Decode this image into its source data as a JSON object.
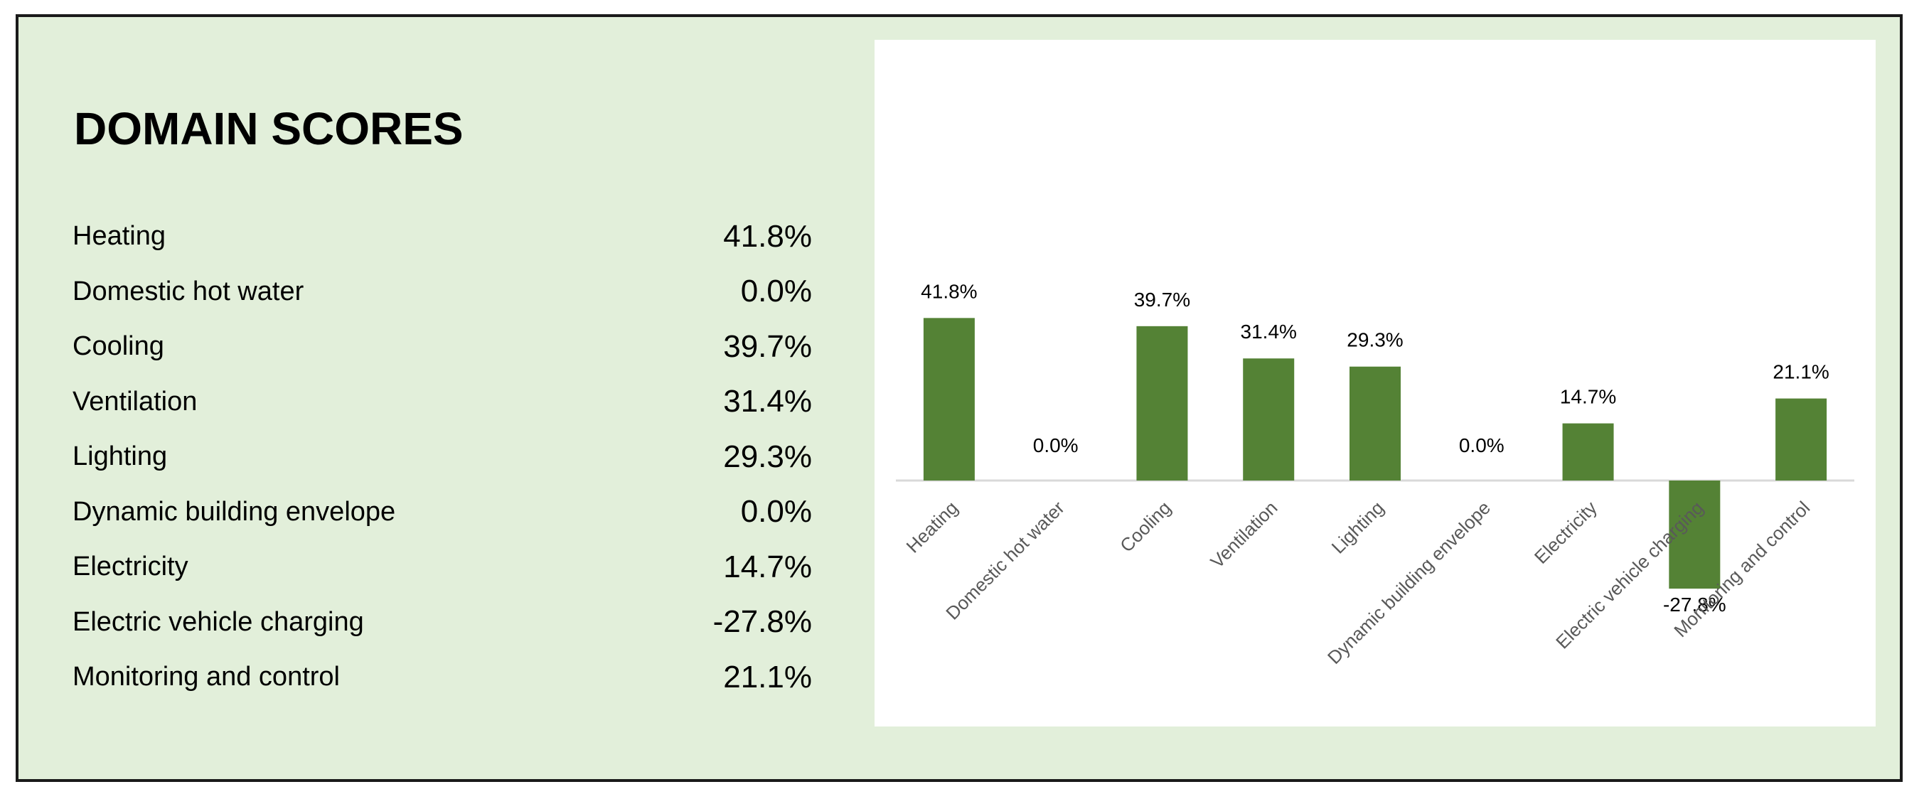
{
  "panel": {
    "title": "DOMAIN SCORES",
    "rows": [
      {
        "label": "Heating",
        "value": "41.8%"
      },
      {
        "label": "Domestic hot water",
        "value": "0.0%"
      },
      {
        "label": "Cooling",
        "value": "39.7%"
      },
      {
        "label": "Ventilation",
        "value": "31.4%"
      },
      {
        "label": "Lighting",
        "value": "29.3%"
      },
      {
        "label": "Dynamic building envelope",
        "value": "0.0%"
      },
      {
        "label": "Electricity",
        "value": "14.7%"
      },
      {
        "label": "Electric vehicle charging",
        "value": "-27.8%"
      },
      {
        "label": "Monitoring and control",
        "value": "21.1%"
      }
    ]
  },
  "colors": {
    "panel_background": "#e2efda",
    "bar": "#548235",
    "chart_background": "#ffffff"
  },
  "chart_data": {
    "type": "bar",
    "categories": [
      "Heating",
      "Domestic hot water",
      "Cooling",
      "Ventilation",
      "Lighting",
      "Dynamic building envelope",
      "Electricity",
      "Electric vehicle charging",
      "Monitoring and control"
    ],
    "values": [
      41.8,
      0.0,
      39.7,
      31.4,
      29.3,
      0.0,
      14.7,
      -27.8,
      21.1
    ],
    "data_labels": [
      "41.8%",
      "0.0%",
      "39.7%",
      "31.4%",
      "29.3%",
      "0.0%",
      "14.7%",
      "-27.8%",
      "21.1%"
    ],
    "title": "",
    "xlabel": "",
    "ylabel": "",
    "ylim": [
      -30,
      45
    ],
    "grid": false,
    "legend": "none"
  }
}
